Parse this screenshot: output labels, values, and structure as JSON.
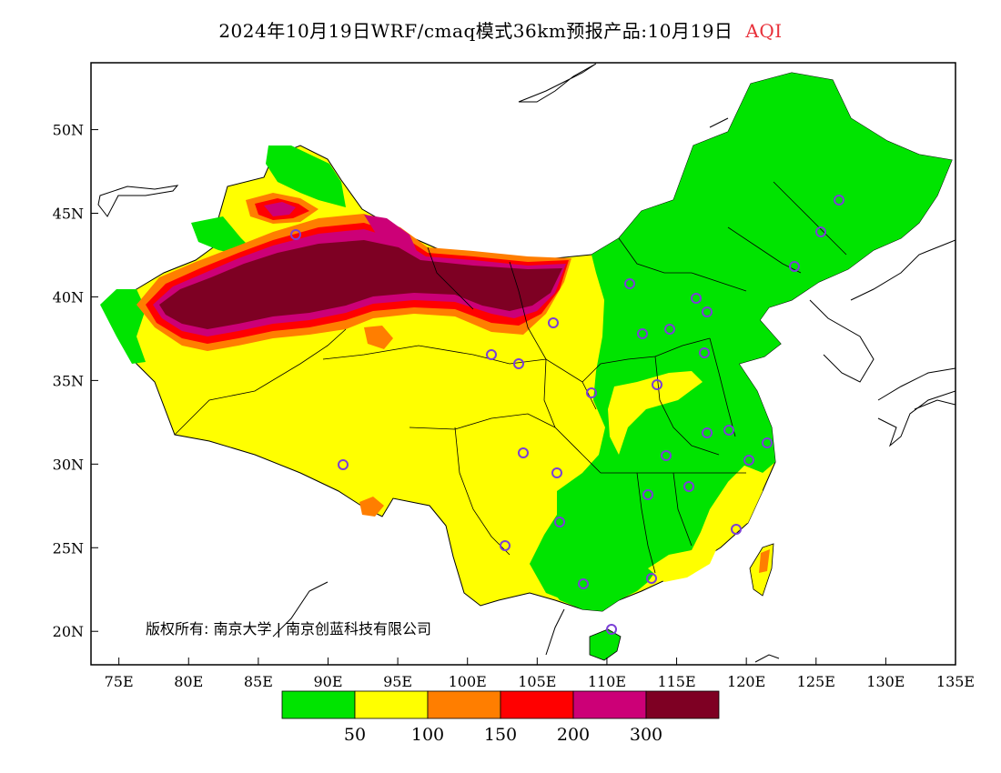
{
  "title": {
    "main": "2024年10月19日WRF/cmaq模式36km预报产品:10月19日",
    "variable": "AQI",
    "variable_color": "#e8303a"
  },
  "map": {
    "lon_range": [
      73,
      135
    ],
    "lat_range": [
      18,
      54
    ],
    "lon_ticks": [
      "75E",
      "80E",
      "85E",
      "90E",
      "95E",
      "100E",
      "105E",
      "110E",
      "115E",
      "120E",
      "125E",
      "130E",
      "135E"
    ],
    "lat_ticks": [
      "20N",
      "25N",
      "30N",
      "35N",
      "40N",
      "45N",
      "50N"
    ],
    "copyright": "版权所有: 南京大学 | 南京创蓝科技有限公司"
  },
  "legend": {
    "colors": [
      "#00e400",
      "#ffff00",
      "#ff7e00",
      "#ff0000",
      "#cc0077",
      "#7e0023"
    ],
    "labels": [
      "50",
      "100",
      "150",
      "200",
      "300"
    ]
  },
  "palette": {
    "good": "#00e400",
    "moderate": "#ffff00",
    "usg": "#ff7e00",
    "unhealthy": "#ff0000",
    "very_unhealthy": "#cc0077",
    "hazardous": "#7e0023",
    "station_marker": "#7a3fd6"
  }
}
